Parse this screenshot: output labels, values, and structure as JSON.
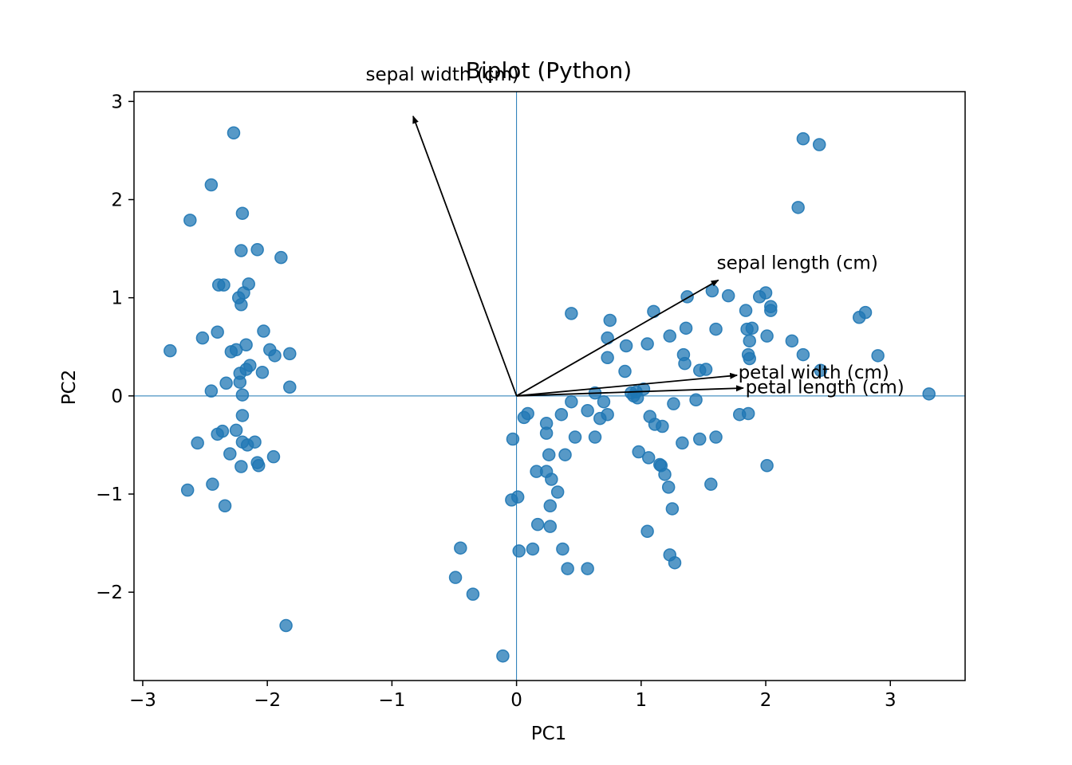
{
  "chart_data": {
    "type": "scatter",
    "title": "Biplot (Python)",
    "xlabel": "PC1",
    "ylabel": "PC2",
    "xlim": [
      -3.07,
      3.6
    ],
    "ylim": [
      -2.9,
      3.1
    ],
    "xticks": [
      -3,
      -2,
      -1,
      0,
      1,
      2,
      3
    ],
    "yticks": [
      -2,
      -1,
      0,
      1,
      2,
      3
    ],
    "tick_labels_x": [
      "−3",
      "−2",
      "−1",
      "0",
      "1",
      "2",
      "3"
    ],
    "tick_labels_y": [
      "−2",
      "−1",
      "0",
      "1",
      "2",
      "3"
    ],
    "grid": false,
    "reference_lines": {
      "x": 0,
      "y": 0,
      "color": "#1f77b4"
    },
    "point_color": "#1f77b4",
    "arrow_color": "#000000",
    "points": [
      [
        -2.27,
        2.68
      ],
      [
        -2.45,
        2.15
      ],
      [
        -2.62,
        1.79
      ],
      [
        -2.2,
        1.86
      ],
      [
        -2.21,
        1.48
      ],
      [
        -2.08,
        1.49
      ],
      [
        -1.89,
        1.41
      ],
      [
        -2.39,
        1.13
      ],
      [
        -2.35,
        1.13
      ],
      [
        -2.15,
        1.14
      ],
      [
        -2.23,
        1.0
      ],
      [
        -2.19,
        1.05
      ],
      [
        -2.21,
        0.93
      ],
      [
        -2.78,
        0.46
      ],
      [
        -2.52,
        0.59
      ],
      [
        -2.4,
        0.65
      ],
      [
        -2.03,
        0.66
      ],
      [
        -2.29,
        0.45
      ],
      [
        -2.25,
        0.47
      ],
      [
        -2.17,
        0.52
      ],
      [
        -1.98,
        0.47
      ],
      [
        -1.94,
        0.41
      ],
      [
        -1.82,
        0.43
      ],
      [
        -2.14,
        0.31
      ],
      [
        -2.17,
        0.27
      ],
      [
        -2.22,
        0.23
      ],
      [
        -2.04,
        0.24
      ],
      [
        -2.22,
        0.14
      ],
      [
        -2.33,
        0.13
      ],
      [
        -1.82,
        0.09
      ],
      [
        -2.45,
        0.05
      ],
      [
        -2.2,
        0.01
      ],
      [
        -2.2,
        -0.2
      ],
      [
        -2.25,
        -0.35
      ],
      [
        -2.36,
        -0.36
      ],
      [
        -2.4,
        -0.39
      ],
      [
        -2.2,
        -0.47
      ],
      [
        -2.16,
        -0.5
      ],
      [
        -2.1,
        -0.47
      ],
      [
        -2.56,
        -0.48
      ],
      [
        -2.3,
        -0.59
      ],
      [
        -1.95,
        -0.62
      ],
      [
        -2.08,
        -0.68
      ],
      [
        -2.07,
        -0.71
      ],
      [
        -2.21,
        -0.72
      ],
      [
        -2.44,
        -0.9
      ],
      [
        -2.64,
        -0.96
      ],
      [
        -2.34,
        -1.12
      ],
      [
        -1.85,
        -2.34
      ],
      [
        2.3,
        2.62
      ],
      [
        2.43,
        2.56
      ],
      [
        2.26,
        1.92
      ],
      [
        0.44,
        0.84
      ],
      [
        0.75,
        0.77
      ],
      [
        1.1,
        0.86
      ],
      [
        1.37,
        1.01
      ],
      [
        1.57,
        1.07
      ],
      [
        1.7,
        1.02
      ],
      [
        1.84,
        0.87
      ],
      [
        1.95,
        1.01
      ],
      [
        2.0,
        1.05
      ],
      [
        2.04,
        0.91
      ],
      [
        2.04,
        0.87
      ],
      [
        1.36,
        0.69
      ],
      [
        1.6,
        0.68
      ],
      [
        1.85,
        0.68
      ],
      [
        1.89,
        0.69
      ],
      [
        2.01,
        0.61
      ],
      [
        2.21,
        0.56
      ],
      [
        2.3,
        0.42
      ],
      [
        2.75,
        0.8
      ],
      [
        2.8,
        0.85
      ],
      [
        2.9,
        0.41
      ],
      [
        2.44,
        0.26
      ],
      [
        1.23,
        0.61
      ],
      [
        0.73,
        0.59
      ],
      [
        0.88,
        0.51
      ],
      [
        1.05,
        0.53
      ],
      [
        0.73,
        0.39
      ],
      [
        1.34,
        0.42
      ],
      [
        1.35,
        0.33
      ],
      [
        1.86,
        0.42
      ],
      [
        1.87,
        0.38
      ],
      [
        1.87,
        0.56
      ],
      [
        1.47,
        0.26
      ],
      [
        1.52,
        0.27
      ],
      [
        0.87,
        0.25
      ],
      [
        0.63,
        0.03
      ],
      [
        0.92,
        0.03
      ],
      [
        0.96,
        0.04
      ],
      [
        1.02,
        0.07
      ],
      [
        0.94,
        0.0
      ],
      [
        0.97,
        -0.02
      ],
      [
        0.7,
        -0.06
      ],
      [
        0.44,
        -0.06
      ],
      [
        0.57,
        -0.15
      ],
      [
        0.67,
        -0.23
      ],
      [
        0.73,
        -0.19
      ],
      [
        1.26,
        -0.08
      ],
      [
        1.44,
        -0.04
      ],
      [
        1.79,
        -0.19
      ],
      [
        1.86,
        -0.18
      ],
      [
        3.31,
        0.02
      ],
      [
        0.09,
        -0.18
      ],
      [
        0.06,
        -0.22
      ],
      [
        0.24,
        -0.28
      ],
      [
        0.24,
        -0.38
      ],
      [
        0.36,
        -0.19
      ],
      [
        1.07,
        -0.21
      ],
      [
        1.11,
        -0.29
      ],
      [
        1.17,
        -0.31
      ],
      [
        -0.03,
        -0.44
      ],
      [
        0.47,
        -0.42
      ],
      [
        0.63,
        -0.42
      ],
      [
        1.33,
        -0.48
      ],
      [
        1.47,
        -0.44
      ],
      [
        1.6,
        -0.42
      ],
      [
        0.26,
        -0.6
      ],
      [
        0.39,
        -0.6
      ],
      [
        0.98,
        -0.57
      ],
      [
        1.06,
        -0.63
      ],
      [
        1.15,
        -0.7
      ],
      [
        1.16,
        -0.71
      ],
      [
        1.19,
        -0.8
      ],
      [
        1.22,
        -0.93
      ],
      [
        1.56,
        -0.9
      ],
      [
        2.01,
        -0.71
      ],
      [
        0.16,
        -0.77
      ],
      [
        0.24,
        -0.77
      ],
      [
        0.28,
        -0.85
      ],
      [
        0.33,
        -0.98
      ],
      [
        -0.04,
        -1.06
      ],
      [
        0.01,
        -1.03
      ],
      [
        0.27,
        -1.12
      ],
      [
        1.25,
        -1.15
      ],
      [
        0.17,
        -1.31
      ],
      [
        0.27,
        -1.33
      ],
      [
        1.05,
        -1.38
      ],
      [
        0.02,
        -1.58
      ],
      [
        0.13,
        -1.56
      ],
      [
        0.37,
        -1.56
      ],
      [
        -0.45,
        -1.55
      ],
      [
        -0.49,
        -1.85
      ],
      [
        0.41,
        -1.76
      ],
      [
        0.57,
        -1.76
      ],
      [
        1.23,
        -1.62
      ],
      [
        1.27,
        -1.7
      ],
      [
        -0.35,
        -2.02
      ],
      [
        -0.11,
        -2.65
      ]
    ],
    "loadings": [
      {
        "label": "sepal length (cm)",
        "x": 1.62,
        "y": 1.18
      },
      {
        "label": "sepal width (cm)",
        "x": -0.83,
        "y": 2.85
      },
      {
        "label": "petal length (cm)",
        "x": 1.82,
        "y": 0.08
      },
      {
        "label": "petal width (cm)",
        "x": 1.77,
        "y": 0.21
      }
    ]
  }
}
